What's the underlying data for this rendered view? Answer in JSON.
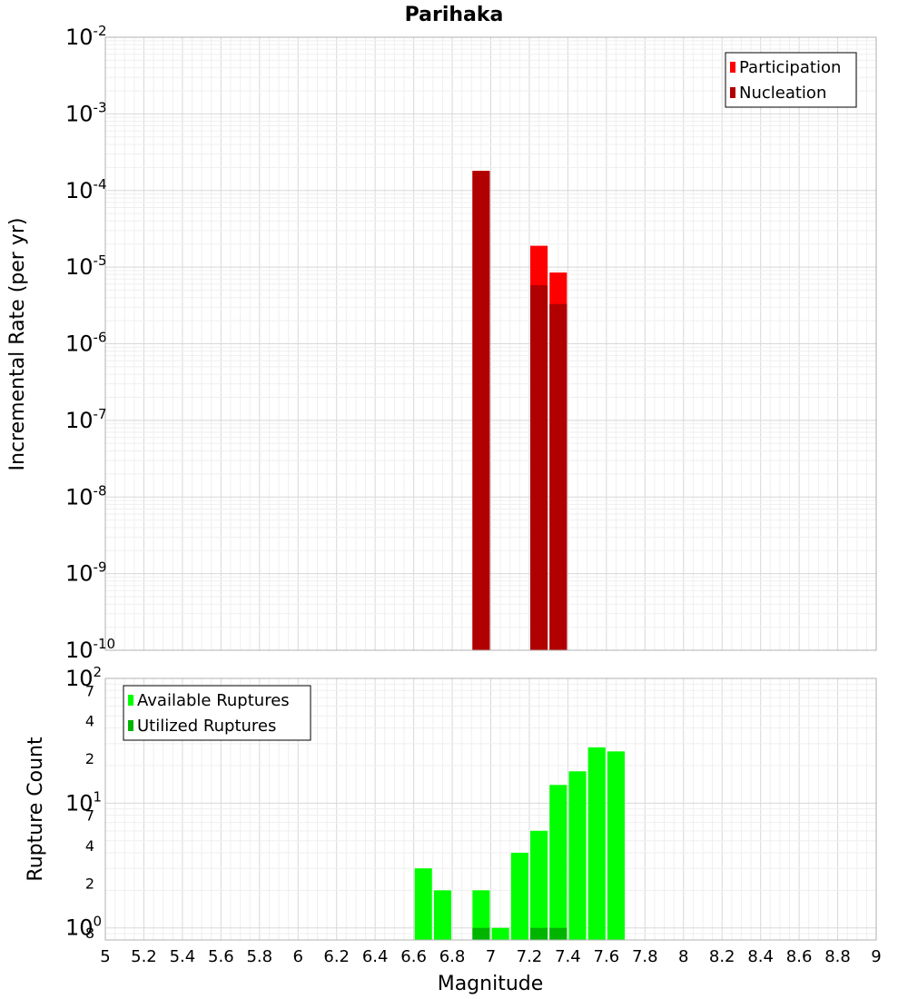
{
  "chart_data": [
    {
      "type": "bar",
      "title": "Parihaka",
      "xlabel": "",
      "ylabel": "Incremental Rate (per yr)",
      "yscale": "log",
      "xlim": [
        5,
        9
      ],
      "ylim": [
        1e-10,
        0.01
      ],
      "y_tick_labels": [
        {
          "base": "10",
          "exp": "-10"
        },
        {
          "base": "10",
          "exp": "-9"
        },
        {
          "base": "10",
          "exp": "-8"
        },
        {
          "base": "10",
          "exp": "-7"
        },
        {
          "base": "10",
          "exp": "-6"
        },
        {
          "base": "10",
          "exp": "-5"
        },
        {
          "base": "10",
          "exp": "-4"
        },
        {
          "base": "10",
          "exp": "-3"
        },
        {
          "base": "10",
          "exp": "-2"
        }
      ],
      "grid": true,
      "legend_position": "top-right",
      "bar_width": 0.09,
      "series": [
        {
          "name": "Participation",
          "color": "#ff0000",
          "x": [
            6.95,
            7.25,
            7.35
          ],
          "values": [
            0.00018,
            1.9e-05,
            8.5e-06
          ]
        },
        {
          "name": "Nucleation",
          "color": "#b00000",
          "x": [
            6.95,
            7.25,
            7.35
          ],
          "values": [
            0.00018,
            5.8e-06,
            3.3e-06
          ]
        }
      ]
    },
    {
      "type": "bar",
      "title": "",
      "xlabel": "Magnitude",
      "ylabel": "Rupture Count",
      "yscale": "log",
      "xlim": [
        5,
        9
      ],
      "ylim": [
        0.8,
        100
      ],
      "x_tick_labels": [
        "5",
        "5.2",
        "5.4",
        "5.6",
        "5.8",
        "6",
        "6.2",
        "6.4",
        "6.6",
        "6.8",
        "7",
        "7.2",
        "7.4",
        "7.6",
        "7.8",
        "8",
        "8.2",
        "8.4",
        "8.6",
        "8.8",
        "9"
      ],
      "y_major_ticks": [
        {
          "base": "10",
          "exp": "0"
        },
        {
          "base": "10",
          "exp": "1"
        },
        {
          "base": "10",
          "exp": "2"
        }
      ],
      "y_minor_ticks": [
        {
          "label": "8",
          "value": 0.8
        },
        {
          "label": "2",
          "value": 2
        },
        {
          "label": "4",
          "value": 4
        },
        {
          "label": "7",
          "value": 7
        },
        {
          "label": "2",
          "value": 20
        },
        {
          "label": "4",
          "value": 40
        },
        {
          "label": "7",
          "value": 70
        }
      ],
      "grid": true,
      "legend_position": "top-left",
      "bar_width": 0.09,
      "series": [
        {
          "name": "Available Ruptures",
          "color": "#00ff00",
          "x": [
            6.65,
            6.75,
            6.95,
            7.05,
            7.15,
            7.25,
            7.35,
            7.45,
            7.55,
            7.65
          ],
          "values": [
            3,
            2,
            2,
            1,
            4,
            6,
            14,
            18,
            28,
            26
          ]
        },
        {
          "name": "Utilized Ruptures",
          "color": "#00b400",
          "x": [
            6.95,
            7.25,
            7.35
          ],
          "values": [
            1,
            1,
            1
          ]
        }
      ]
    }
  ]
}
